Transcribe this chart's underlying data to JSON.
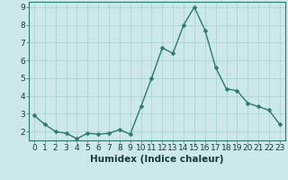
{
  "x": [
    0,
    1,
    2,
    3,
    4,
    5,
    6,
    7,
    8,
    9,
    10,
    11,
    12,
    13,
    14,
    15,
    16,
    17,
    18,
    19,
    20,
    21,
    22,
    23
  ],
  "y": [
    2.9,
    2.4,
    2.0,
    1.9,
    1.6,
    1.9,
    1.85,
    1.9,
    2.1,
    1.85,
    3.4,
    5.0,
    6.7,
    6.4,
    8.0,
    9.0,
    7.7,
    5.6,
    4.4,
    4.3,
    3.6,
    3.4,
    3.2,
    2.4
  ],
  "xlabel": "Humidex (Indice chaleur)",
  "line_color": "#2d7a6a",
  "marker_color": "#2d7a6a",
  "bg_color": "#cce8e8",
  "grid_color": "#aacfcf",
  "plot_bg": "#cce8e8",
  "xlim": [
    -0.5,
    23.5
  ],
  "ylim": [
    1.5,
    9.3
  ],
  "yticks": [
    2,
    3,
    4,
    5,
    6,
    7,
    8,
    9
  ],
  "xlabel_fontsize": 7.5,
  "tick_fontsize": 6.5,
  "line_width": 1.0,
  "marker_size": 2.5
}
